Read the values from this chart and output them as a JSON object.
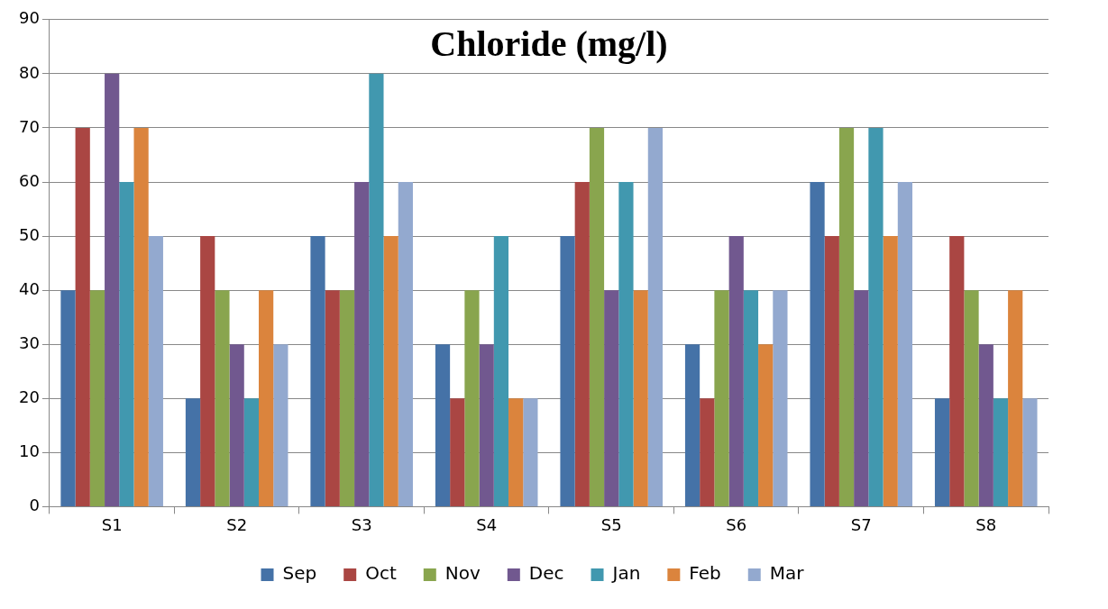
{
  "chart_data": {
    "type": "bar",
    "title": "Chloride (mg/l)",
    "categories": [
      "S1",
      "S2",
      "S3",
      "S4",
      "S5",
      "S6",
      "S7",
      "S8"
    ],
    "series": [
      {
        "name": "Sep",
        "color": "#4572a7",
        "values": [
          40,
          20,
          50,
          30,
          50,
          30,
          60,
          20
        ]
      },
      {
        "name": "Oct",
        "color": "#aa4643",
        "values": [
          70,
          50,
          40,
          20,
          60,
          20,
          50,
          50
        ]
      },
      {
        "name": "Nov",
        "color": "#89a54e",
        "values": [
          40,
          40,
          40,
          40,
          70,
          40,
          70,
          40
        ]
      },
      {
        "name": "Dec",
        "color": "#71588f",
        "values": [
          80,
          30,
          60,
          30,
          40,
          50,
          40,
          30
        ]
      },
      {
        "name": "Jan",
        "color": "#4198af",
        "values": [
          60,
          20,
          80,
          50,
          60,
          40,
          70,
          20
        ]
      },
      {
        "name": "Feb",
        "color": "#db843d",
        "values": [
          70,
          40,
          50,
          20,
          40,
          30,
          50,
          40
        ]
      },
      {
        "name": "Mar",
        "color": "#93a9cf",
        "values": [
          50,
          30,
          60,
          20,
          70,
          40,
          60,
          20
        ]
      }
    ],
    "ylim": [
      0,
      90
    ],
    "yticks": [
      0,
      10,
      20,
      30,
      40,
      50,
      60,
      70,
      80,
      90
    ],
    "grid": "y",
    "legend": "bottom"
  }
}
